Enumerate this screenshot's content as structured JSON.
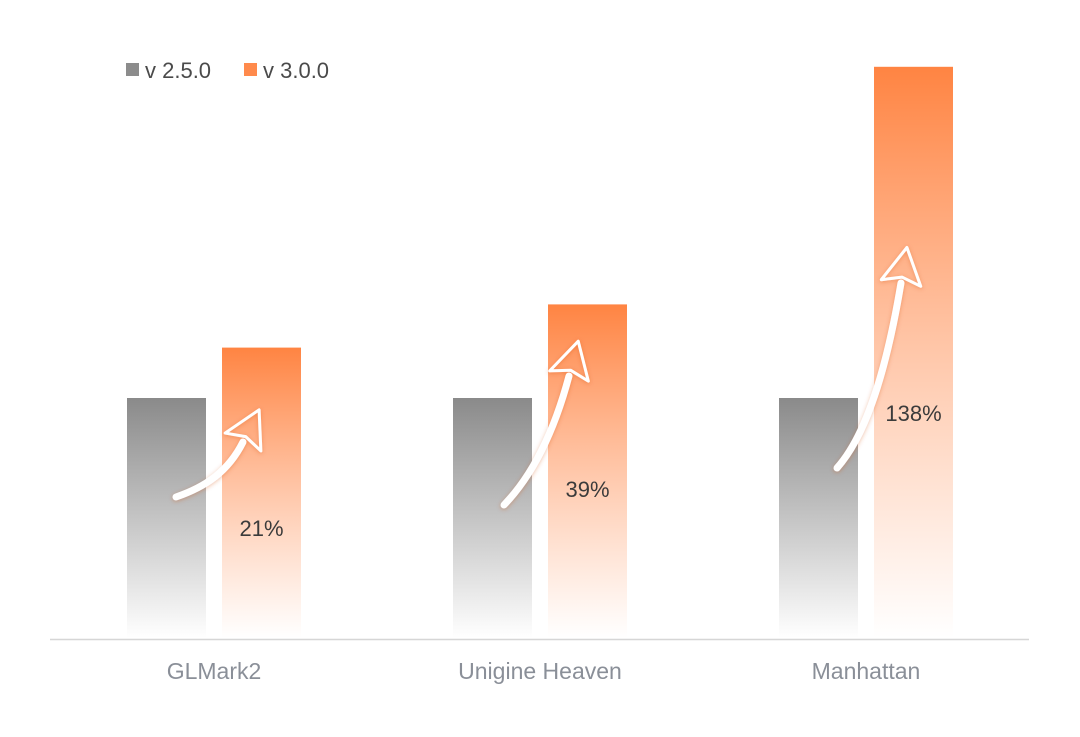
{
  "chart_data": {
    "type": "bar",
    "title": "",
    "xlabel": "",
    "ylabel": "",
    "categories": [
      "GLMark2",
      "Unigine Heaven",
      "Manhattan"
    ],
    "series": [
      {
        "name": "v 2.5.0",
        "values": [
          1.0,
          1.0,
          1.0
        ],
        "color": "#8c8c8c"
      },
      {
        "name": "v 3.0.0",
        "values": [
          1.21,
          1.39,
          2.38
        ],
        "color": "#ff8a4c"
      }
    ],
    "annotations": [
      "21%",
      "39%",
      "138%"
    ],
    "ylim": [
      0,
      2.45
    ],
    "grid": false,
    "legend_position": "top-left",
    "axes_visible": false
  }
}
